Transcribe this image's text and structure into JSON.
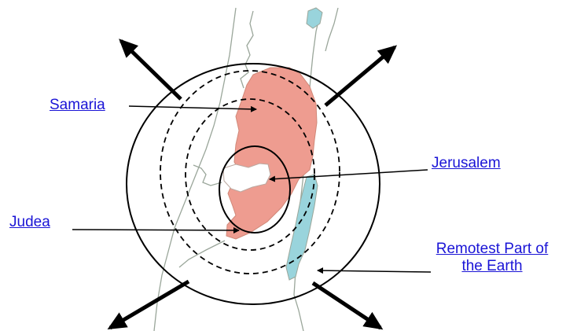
{
  "labels": {
    "samaria": "Samaria",
    "jerusalem": "Jerusalem",
    "judea": "Judea",
    "remotest_line1": "Remotest Part of",
    "remotest_line2": "the Earth"
  },
  "colors": {
    "link": "#1a14d6",
    "region_fill": "#ee9c90",
    "water_fill": "#99d4dc",
    "map_line": "#9aa69a",
    "circle_stroke": "#000000"
  }
}
